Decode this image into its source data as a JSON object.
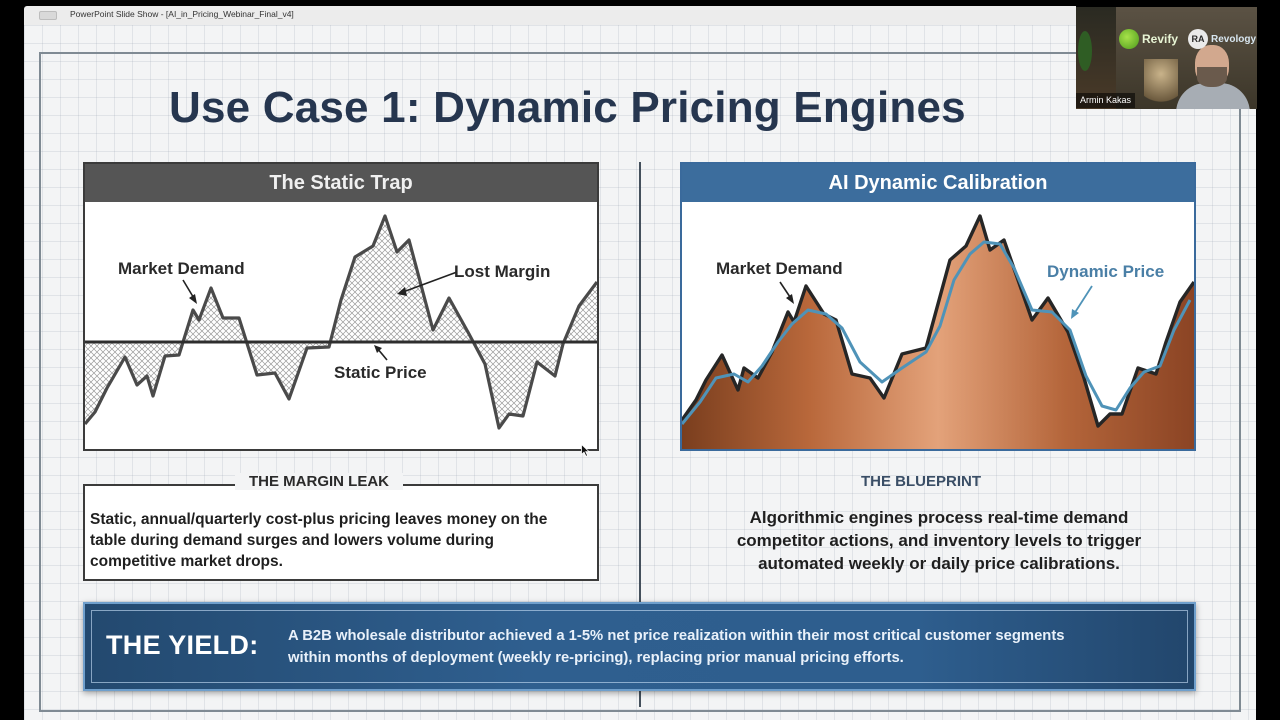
{
  "window": {
    "title": "PowerPoint Slide Show - [AI_in_Pricing_Webinar_Final_v4]"
  },
  "slide": {
    "title": "Use Case 1: Dynamic Pricing Engines",
    "left_panel": {
      "header": "The Static Trap",
      "labels": {
        "market_demand": "Market Demand",
        "lost_margin": "Lost Margin",
        "static_price": "Static Price"
      }
    },
    "right_panel": {
      "header": "AI Dynamic Calibration",
      "labels": {
        "market_demand": "Market Demand",
        "dynamic_price": "Dynamic Price"
      }
    },
    "margin_leak": {
      "title": "THE MARGIN LEAK",
      "body": "Static, annual/quarterly cost-plus pricing leaves money on the table during demand surges and lowers volume during competitive market drops."
    },
    "blueprint": {
      "title": "THE BLUEPRINT",
      "body": "Algorithmic engines process real-time demand competitor actions, and inventory levels to trigger automated weekly or daily price calibrations."
    },
    "yield": {
      "label": "THE YIELD:",
      "body": "A B2B wholesale distributor achieved a 1-5% net price realization within their most critical customer segments within months of deployment (weekly re-pricing), replacing prior manual pricing efforts."
    }
  },
  "video": {
    "participant_name": "Armin Kakas",
    "logos": [
      "Revify",
      "Revology"
    ]
  },
  "colors": {
    "title": "#26364f",
    "left_header": "#555555",
    "right_header": "#3c6d9d",
    "demand_fill": "#b5673a",
    "dynamic_price_line": "#4f93b8",
    "yield_banner": "#2f5f8f"
  }
}
